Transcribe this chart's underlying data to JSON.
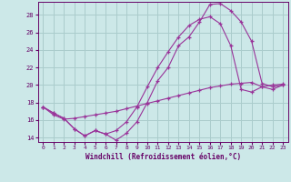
{
  "xlabel": "Windchill (Refroidissement éolien,°C)",
  "background_color": "#cce8e8",
  "grid_color": "#aacccc",
  "line_color": "#993399",
  "ylim": [
    13.5,
    29.5
  ],
  "xlim": [
    -0.5,
    23.5
  ],
  "yticks": [
    14,
    16,
    18,
    20,
    22,
    24,
    26,
    28
  ],
  "xticks": [
    0,
    1,
    2,
    3,
    4,
    5,
    6,
    7,
    8,
    9,
    10,
    11,
    12,
    13,
    14,
    15,
    16,
    17,
    18,
    19,
    20,
    21,
    22,
    23
  ],
  "line1_x": [
    0,
    1,
    2,
    3,
    4,
    5,
    6,
    7,
    8,
    9,
    10,
    11,
    12,
    13,
    14,
    15,
    16,
    17,
    18,
    19,
    20,
    21,
    22,
    23
  ],
  "line1_y": [
    17.5,
    16.8,
    16.2,
    15.0,
    14.2,
    14.8,
    14.4,
    13.7,
    14.5,
    15.8,
    18.0,
    20.5,
    22.0,
    24.5,
    25.5,
    27.2,
    29.2,
    29.3,
    28.5,
    27.2,
    25.0,
    20.2,
    19.8,
    20.0
  ],
  "line2_x": [
    0,
    1,
    2,
    3,
    4,
    5,
    6,
    7,
    8,
    9,
    10,
    11,
    12,
    13,
    14,
    15,
    16,
    17,
    18,
    19,
    20,
    21,
    22,
    23
  ],
  "line2_y": [
    17.5,
    16.8,
    16.2,
    15.0,
    14.2,
    14.8,
    14.4,
    14.8,
    15.8,
    17.5,
    19.8,
    22.0,
    23.8,
    25.5,
    26.8,
    27.5,
    27.8,
    27.0,
    24.5,
    19.5,
    19.2,
    19.8,
    19.5,
    20.0
  ],
  "line3_x": [
    0,
    1,
    2,
    3,
    4,
    5,
    6,
    7,
    8,
    9,
    10,
    11,
    12,
    13,
    14,
    15,
    16,
    17,
    18,
    19,
    20,
    21,
    22,
    23
  ],
  "line3_y": [
    17.5,
    16.6,
    16.1,
    16.2,
    16.4,
    16.6,
    16.8,
    17.0,
    17.3,
    17.6,
    17.9,
    18.2,
    18.5,
    18.8,
    19.1,
    19.4,
    19.7,
    19.9,
    20.1,
    20.2,
    20.3,
    19.8,
    20.0,
    20.1
  ]
}
